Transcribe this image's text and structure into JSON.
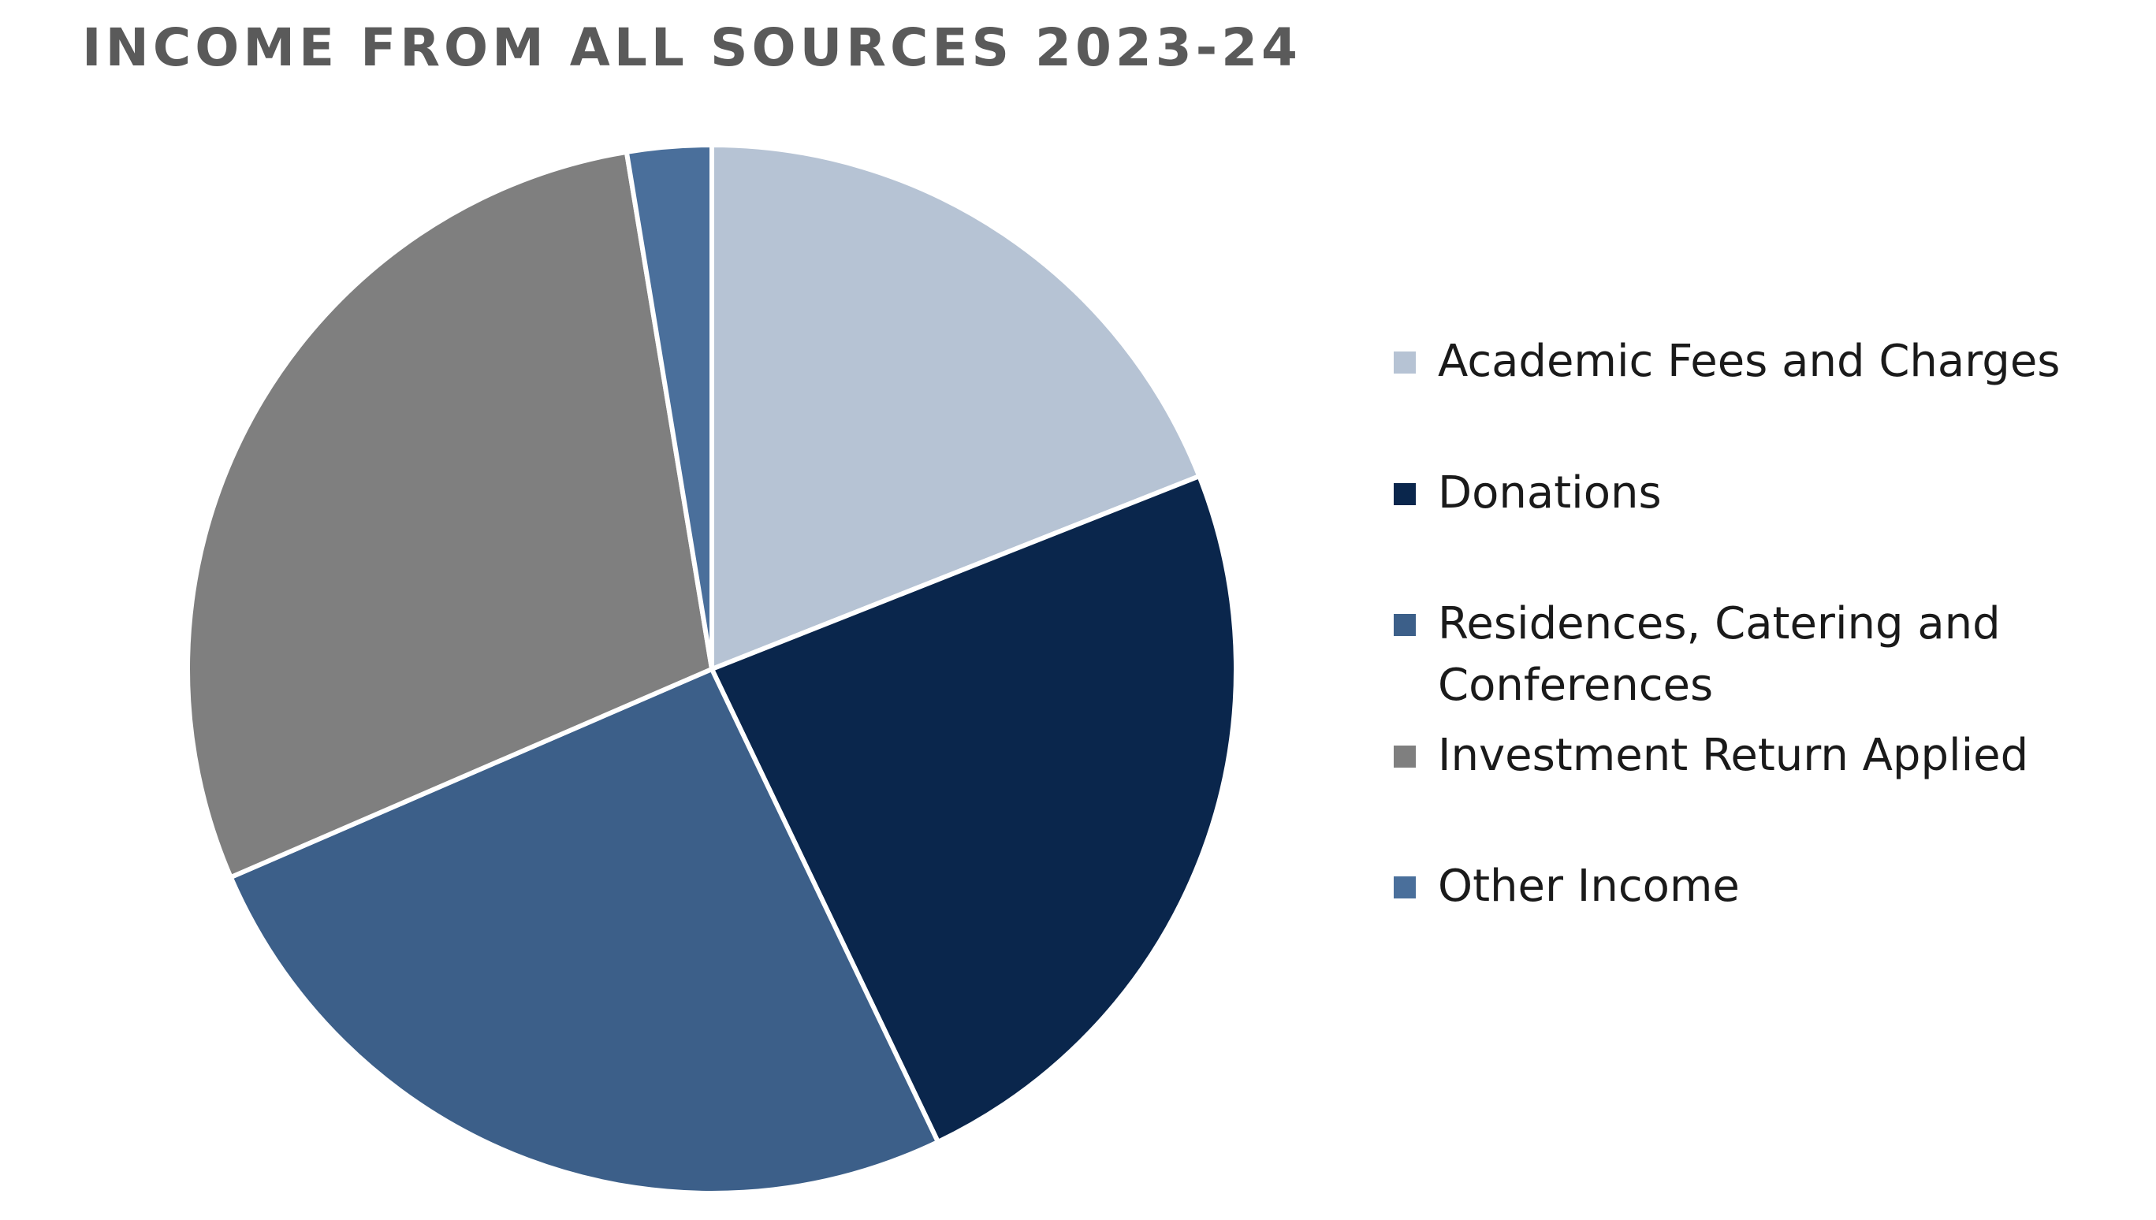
{
  "chart_data": {
    "type": "pie",
    "title": "INCOME FROM ALL SOURCES 2023-24",
    "legend_position": "right",
    "categories": [
      "Academic Fees and Charges",
      "Donations",
      "Residences, Catering and Conferences",
      "Investment Return Applied",
      "Other Income"
    ],
    "values": [
      19.0,
      23.9,
      25.6,
      28.9,
      2.6
    ],
    "colors": [
      "#b6c3d4",
      "#0a264c",
      "#3c5f89",
      "#7f7f7f",
      "#4a6f9b"
    ]
  }
}
